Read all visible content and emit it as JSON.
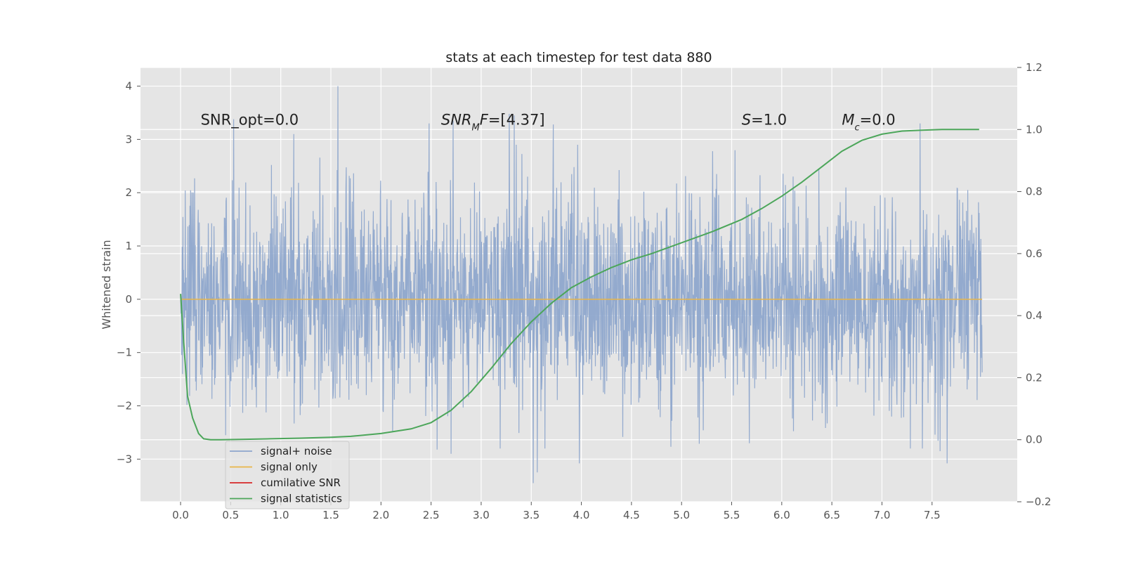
{
  "chart_data": {
    "type": "line",
    "title": "stats at each timestep for test data 880",
    "ylabel": "Whitened strain",
    "ylabel_right": "",
    "xlabel": "",
    "grid": true,
    "legend_position": "lower left",
    "xlim": [
      -0.4,
      8.35
    ],
    "ylim": [
      -3.8,
      4.35
    ],
    "ylim_right": [
      -0.2,
      1.2
    ],
    "x_ticks": [
      "0.0",
      "0.5",
      "1.0",
      "1.5",
      "2.0",
      "2.5",
      "3.0",
      "3.5",
      "4.0",
      "4.5",
      "5.0",
      "5.5",
      "6.0",
      "6.5",
      "7.0",
      "7.5"
    ],
    "x_tick_values": [
      0,
      0.5,
      1,
      1.5,
      2,
      2.5,
      3,
      3.5,
      4,
      4.5,
      5,
      5.5,
      6,
      6.5,
      7,
      7.5
    ],
    "y_ticks": [
      "−3",
      "−2",
      "−1",
      "0",
      "1",
      "2",
      "3",
      "4"
    ],
    "y_tick_values": [
      -3,
      -2,
      -1,
      0,
      1,
      2,
      3,
      4
    ],
    "y_right_ticks": [
      "−0.2",
      "0.0",
      "0.2",
      "0.4",
      "0.6",
      "0.8",
      "1.0",
      "1.2"
    ],
    "y_right_tick_values": [
      -0.2,
      0,
      0.2,
      0.4,
      0.6,
      0.8,
      1.0,
      1.2
    ],
    "annotations": [
      {
        "text": "SNR_opt=0.0",
        "x": 0.2,
        "y": 3.3
      },
      {
        "text": "SNR_MF=[4.37]",
        "x": 2.6,
        "y": 3.3
      },
      {
        "text": "S=1.0",
        "x": 5.6,
        "y": 3.3
      },
      {
        "text": "M_c=0.0",
        "x": 6.6,
        "y": 3.3
      }
    ],
    "series": [
      {
        "name": "signal+ noise",
        "color": "#8EA6CC",
        "axis": "left",
        "x_range": [
          0,
          8.0
        ],
        "description_stats": {
          "min": -3.45,
          "max": 4.0
        },
        "spikes": [
          {
            "x": 0.53,
            "y": 3.38
          },
          {
            "x": 1.13,
            "y": 3.1
          },
          {
            "x": 1.57,
            "y": 4.0
          },
          {
            "x": 2.48,
            "y": 3.3
          },
          {
            "x": 2.72,
            "y": 3.35
          },
          {
            "x": 3.28,
            "y": 3.48
          },
          {
            "x": 3.33,
            "y": 3.45
          },
          {
            "x": 3.72,
            "y": 3.28
          },
          {
            "x": 3.98,
            "y": 3.23
          },
          {
            "x": 7.38,
            "y": 3.3
          },
          {
            "x": 3.52,
            "y": -3.45
          },
          {
            "x": 3.56,
            "y": -3.25
          },
          {
            "x": 3.98,
            "y": -3.08
          },
          {
            "x": 7.65,
            "y": -3.08
          },
          {
            "x": 7.58,
            "y": -2.85
          },
          {
            "x": 2.56,
            "y": -2.82
          },
          {
            "x": 2.7,
            "y": -2.9
          },
          {
            "x": 0.45,
            "y": -2.55
          }
        ]
      },
      {
        "name": "signal only",
        "color": "#E8B548",
        "axis": "left",
        "x": [
          0,
          8.0
        ],
        "y": [
          0,
          0
        ]
      },
      {
        "name": "cumilative SNR",
        "color": "#D62728",
        "axis": "left",
        "x": [],
        "y": []
      },
      {
        "name": "signal statistics",
        "color": "#4CA65A",
        "axis": "right",
        "x": [
          0.0,
          0.03,
          0.07,
          0.12,
          0.18,
          0.23,
          0.3,
          0.4,
          0.6,
          0.9,
          1.2,
          1.5,
          1.7,
          2.0,
          2.3,
          2.5,
          2.7,
          2.9,
          3.1,
          3.3,
          3.5,
          3.7,
          3.9,
          4.1,
          4.3,
          4.5,
          4.7,
          5.0,
          5.3,
          5.6,
          5.8,
          6.0,
          6.2,
          6.4,
          6.6,
          6.8,
          7.0,
          7.2,
          7.4,
          7.6,
          7.8,
          7.97
        ],
        "y": [
          0.47,
          0.32,
          0.14,
          0.07,
          0.02,
          0.003,
          0.0,
          0.0,
          0.001,
          0.003,
          0.005,
          0.008,
          0.011,
          0.02,
          0.035,
          0.055,
          0.095,
          0.155,
          0.23,
          0.31,
          0.38,
          0.44,
          0.49,
          0.525,
          0.555,
          0.58,
          0.6,
          0.635,
          0.67,
          0.71,
          0.745,
          0.785,
          0.83,
          0.88,
          0.93,
          0.965,
          0.985,
          0.995,
          0.998,
          1.0,
          1.0,
          1.0
        ]
      }
    ]
  },
  "legend": {
    "items": [
      {
        "label": "signal+ noise",
        "color": "#8EA6CC"
      },
      {
        "label": "signal only",
        "color": "#E8B548"
      },
      {
        "label": "cumilative SNR",
        "color": "#D62728"
      },
      {
        "label": "signal statistics",
        "color": "#4CA65A"
      }
    ]
  },
  "style": {
    "axes_bg": "#E5E5E5",
    "grid_color": "#FFFFFF",
    "text_color": "#555555",
    "title_color": "#222222"
  }
}
